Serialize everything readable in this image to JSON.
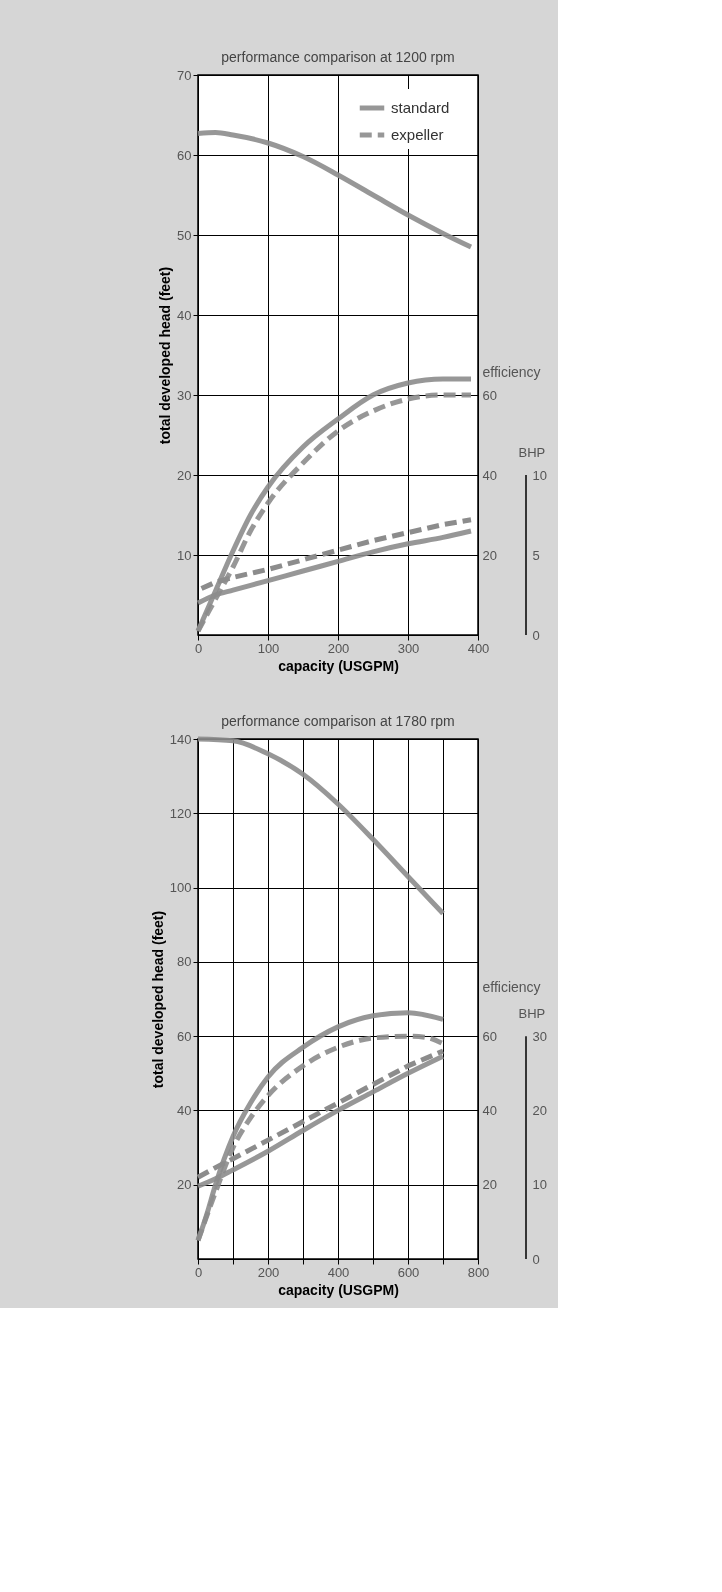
{
  "chart_data": [
    {
      "type": "line",
      "title": "performance comparison at 1200 rpm",
      "xlabel": "capacity (USGPM)",
      "ylabel": "total developed head (feet)",
      "y2label": "efficiency",
      "y3label": "BHP",
      "xlim": [
        0,
        400
      ],
      "xticks": [
        0,
        100,
        200,
        300,
        400
      ],
      "ylim": [
        0,
        70
      ],
      "yticks": [
        10,
        20,
        30,
        40,
        50,
        60,
        70
      ],
      "y2lim": [
        0,
        140
      ],
      "y2ticks": [
        20,
        40,
        60
      ],
      "y3lim": [
        0,
        35
      ],
      "y3ticks": [
        0,
        5,
        10
      ],
      "grid": true,
      "legend": "top right",
      "marker": "none",
      "series": [
        {
          "name": "standard",
          "color": "#8c8c8c",
          "line_style": "solid",
          "x": [
            0,
            25,
            50,
            100,
            150,
            200,
            250,
            300,
            350,
            390
          ],
          "values": [
            62.7,
            62.8,
            62.5,
            61.5,
            59.8,
            57.5,
            55,
            52.5,
            50.2,
            48.5
          ]
        },
        {
          "color": "#8c8c8c",
          "line_style": "solid",
          "axis": "y2",
          "x": [
            0,
            10,
            25,
            50,
            75,
            100,
            150,
            200,
            250,
            300,
            350,
            390
          ],
          "values": [
            1,
            5,
            11,
            21,
            30,
            37,
            47,
            54,
            60,
            63,
            64,
            64
          ]
        },
        {
          "name": "expeller",
          "color": "#8c8c8c",
          "line_style": "dashed",
          "axis": "y2",
          "x": [
            0,
            25,
            50,
            75,
            100,
            150,
            200,
            250,
            300,
            350,
            390
          ],
          "values": [
            1,
            9,
            17,
            26,
            33,
            43,
            51,
            56,
            59,
            60,
            60
          ]
        },
        {
          "color": "#8c8c8c",
          "line_style": "solid",
          "axis": "y3",
          "x": [
            0,
            25,
            50,
            100,
            150,
            200,
            250,
            300,
            350,
            390
          ],
          "values": [
            2,
            2.5,
            2.8,
            3.4,
            4,
            4.6,
            5.2,
            5.7,
            6.1,
            6.5
          ]
        },
        {
          "color": "#8c8c8c",
          "line_style": "dashed",
          "axis": "y3",
          "x": [
            5,
            25,
            50,
            100,
            150,
            200,
            250,
            300,
            350,
            390
          ],
          "values": [
            2.9,
            3.3,
            3.6,
            4.1,
            4.7,
            5.3,
            5.9,
            6.4,
            6.9,
            7.2
          ]
        }
      ]
    },
    {
      "type": "line",
      "title": "performance comparison at 1780 rpm",
      "xlabel": "capacity (USGPM)",
      "ylabel": "total developed head (feet)",
      "y2label": "efficiency",
      "y3label": "BHP",
      "xlim": [
        0,
        800
      ],
      "xticks": [
        0,
        {
          "value": 100,
          "label": null
        },
        200,
        {
          "value": 300,
          "label": null
        },
        400,
        {
          "value": 500,
          "label": null
        },
        600,
        {
          "value": 700,
          "label": null
        },
        800
      ],
      "ylim": [
        0,
        140
      ],
      "yticks": [
        20,
        40,
        60,
        80,
        100,
        120,
        140
      ],
      "y2lim": [
        0,
        140
      ],
      "y2ticks": [
        20,
        40,
        60
      ],
      "y3lim": [
        0,
        70
      ],
      "y3ticks": [
        0,
        10,
        20,
        30
      ],
      "grid": true,
      "legend": "top left",
      "marker": "none",
      "series": [
        {
          "name": "standard",
          "color": "#8c8c8c",
          "line_style": "solid",
          "x": [
            0,
            100,
            200,
            300,
            400,
            500,
            600,
            700
          ],
          "values": [
            140,
            139.5,
            136,
            130.5,
            122.5,
            113,
            103,
            93
          ]
        },
        {
          "color": "#8c8c8c",
          "line_style": "solid",
          "axis": "y2",
          "x": [
            0,
            25,
            50,
            100,
            150,
            200,
            300,
            400,
            500,
            600,
            700
          ],
          "values": [
            5,
            12,
            20,
            33,
            42,
            49,
            57,
            62.5,
            65.5,
            66.3,
            64.5
          ]
        },
        {
          "name": "expeller",
          "color": "#8c8c8c",
          "line_style": "dashed",
          "axis": "y2",
          "x": [
            0,
            50,
            100,
            150,
            200,
            300,
            400,
            500,
            600,
            650,
            700
          ],
          "values": [
            5,
            18,
            30,
            38,
            44,
            52,
            57,
            59.5,
            60,
            59.7,
            58
          ]
        },
        {
          "color": "#8c8c8c",
          "line_style": "solid",
          "axis": "y3",
          "x": [
            0,
            50,
            100,
            200,
            300,
            400,
            500,
            600,
            700
          ],
          "values": [
            9.8,
            10.8,
            12,
            14.5,
            17.3,
            20,
            22.5,
            25,
            27.3
          ]
        },
        {
          "color": "#8c8c8c",
          "line_style": "dashed",
          "axis": "y3",
          "x": [
            0,
            50,
            100,
            200,
            300,
            400,
            500,
            600,
            700
          ],
          "values": [
            11,
            12.3,
            13.5,
            16,
            18.5,
            21,
            23.5,
            26,
            28
          ]
        }
      ]
    }
  ]
}
